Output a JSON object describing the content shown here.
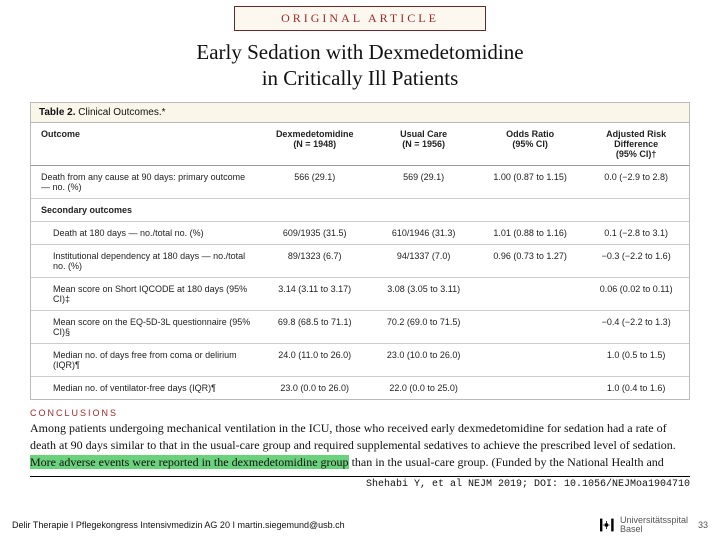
{
  "banner": "ORIGINAL ARTICLE",
  "title_l1": "Early Sedation with Dexmedetomidine",
  "title_l2": "in Critically Ill Patients",
  "table_caption_b": "Table 2.",
  "table_caption": " Clinical Outcomes.*",
  "cols": {
    "c0": "Outcome",
    "c1": "Dexmedetomidine\n(N = 1948)",
    "c2": "Usual Care\n(N = 1956)",
    "c3": "Odds Ratio\n(95% CI)",
    "c4": "Adjusted Risk\nDifference\n(95% CI)†"
  },
  "r1": {
    "c0": "Death from any cause at 90 days: primary outcome — no. (%)",
    "c1": "566 (29.1)",
    "c2": "569 (29.1)",
    "c3": "1.00 (0.87 to 1.15)",
    "c4": "0.0 (−2.9 to 2.8)"
  },
  "sec": "Secondary outcomes",
  "r2": {
    "c0": "Death at 180 days — no./total no. (%)",
    "c1": "609/1935 (31.5)",
    "c2": "610/1946 (31.3)",
    "c3": "1.01 (0.88 to 1.16)",
    "c4": "0.1 (−2.8 to 3.1)"
  },
  "r3": {
    "c0": "Institutional dependency at 180 days — no./total no. (%)",
    "c1": "89/1323 (6.7)",
    "c2": "94/1337 (7.0)",
    "c3": "0.96 (0.73 to 1.27)",
    "c4": "−0.3 (−2.2 to 1.6)"
  },
  "r4": {
    "c0": "Mean score on Short IQCODE at 180 days (95% CI)‡",
    "c1": "3.14 (3.11 to 3.17)",
    "c2": "3.08 (3.05 to 3.11)",
    "c3": "",
    "c4": "0.06 (0.02 to 0.11)"
  },
  "r5": {
    "c0": "Mean score on the EQ-5D-3L questionnaire (95% CI)§",
    "c1": "69.8 (68.5 to 71.1)",
    "c2": "70.2 (69.0 to 71.5)",
    "c3": "",
    "c4": "−0.4 (−2.2 to 1.3)"
  },
  "r6": {
    "c0": "Median no. of days free from coma or delirium (IQR)¶",
    "c1": "24.0 (11.0 to 26.0)",
    "c2": "23.0 (10.0 to 26.0)",
    "c3": "",
    "c4": "1.0 (0.5 to 1.5)"
  },
  "r7": {
    "c0": "Median no. of ventilator-free days (IQR)¶",
    "c1": "23.0 (0.0 to 26.0)",
    "c2": "22.0 (0.0 to 25.0)",
    "c3": "",
    "c4": "1.0 (0.4 to 1.6)"
  },
  "concl_h": "CONCLUSIONS",
  "concl_a": "Among patients undergoing mechanical ventilation in the ICU, those who received early dexmedetomidine for sedation had a rate of death at 90 days similar to that in the usual-care group and required supplemental sedatives to achieve the prescribed level of sedation. ",
  "concl_hl": "More adverse events were reported in the dexmedetomidine group",
  "concl_b": " than in the usual-care group. (Funded by the National Health and",
  "cite": "Shehabi Y, et al NEJM 2019; DOI: 10.1056/NEJMoa1904710",
  "footer": "Delir Therapie I Pflegekongress Intensivmedizin AG 20 I martin.siegemund@usb.ch",
  "hosp1": "Universitätsspital",
  "hosp2": "Basel",
  "page": "33"
}
